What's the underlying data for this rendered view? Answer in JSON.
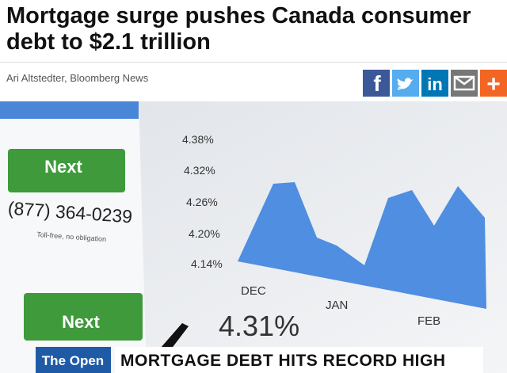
{
  "header": {
    "title": "Mortgage surge pushes Canada consumer debt to $2.1 trillion",
    "byline": "Ari Altstedter, Bloomberg News"
  },
  "share": [
    "f",
    "in",
    "+"
  ],
  "image": {
    "buttons": [
      "Next",
      "Next"
    ],
    "phone": "(877) 364-0239",
    "phone_note": "Toll-free, no obligation",
    "rates": [
      "4.38%",
      "4.32%",
      "4.26%",
      "4.20%",
      "4.14%"
    ],
    "months": [
      "DEC",
      "JAN",
      "FEB"
    ],
    "big_rate": "4.31%",
    "show": "The Open",
    "banner": "MORTGAGE DEBT HITS RECORD HIGH"
  }
}
